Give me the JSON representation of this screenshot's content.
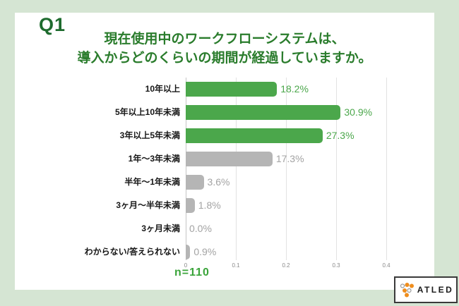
{
  "q_label": "Q1",
  "title": {
    "line1": "現在使用中のワークフローシステムは、",
    "line2": "導入からどのくらいの期間が経過していますか。"
  },
  "chart_data": {
    "type": "bar",
    "orientation": "horizontal",
    "title": "現在使用中のワークフローシステムは、導入からどのくらいの期間が経過していますか。",
    "categories": [
      "10年以上",
      "5年以上10年未満",
      "3年以上5年未満",
      "1年〜3年未満",
      "半年〜1年未満",
      "3ヶ月〜半年未満",
      "3ヶ月未満",
      "わからない/答えられない"
    ],
    "values_percent": [
      18.2,
      30.9,
      27.3,
      17.3,
      3.6,
      1.8,
      0.0,
      0.9
    ],
    "value_labels": [
      "18.2%",
      "30.9%",
      "27.3%",
      "17.3%",
      "3.6%",
      "1.8%",
      "0.0%",
      "0.9%"
    ],
    "highlighted": [
      true,
      true,
      true,
      false,
      false,
      false,
      false,
      false
    ],
    "x_ticks": [
      "0",
      "0.1",
      "0.2",
      "0.3",
      "0.4"
    ],
    "xlim": [
      0,
      0.4
    ],
    "grid": true,
    "legend": false
  },
  "footnote": "n=110",
  "logo": {
    "text": "ATLED"
  },
  "colors": {
    "frame_background": "#d5e5d3",
    "card_background": "#ffffff",
    "q_label": "#1e6b2e",
    "title_green": "#2a7c2c",
    "bar_highlight": "#4ba74b",
    "bar_muted": "#b5b5b5",
    "value_label_highlight": "#4ba74b",
    "value_label_muted": "#a3a3a3",
    "footnote_green": "#3aa43a",
    "logo_orange": "#ef8e1e"
  }
}
